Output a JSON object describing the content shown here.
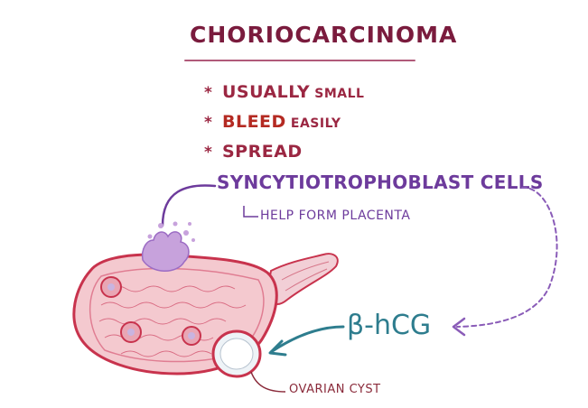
{
  "title": "Choriocarcinoma",
  "bullets": {
    "marker": "*",
    "item1_strong": "Usually",
    "item1_light": "small",
    "item2_red": "Bleed",
    "item2_light": "easily",
    "item3_strong": "Spread"
  },
  "cell_label": "Syncytiotrophoblast cells",
  "cell_note": "Help form placenta",
  "hormone_label": "β-hCG",
  "cyst_label": "Ovarian cyst",
  "colors": {
    "title": "#7a1b3d",
    "bullets": "#9b2742",
    "bleed": "#b42a22",
    "cells": "#6d3b9c",
    "hormone": "#2e7d8e",
    "ovary_fill": "#f4c9cf",
    "ovary_outline": "#c8334d",
    "tumor": "#c7a2dc"
  }
}
